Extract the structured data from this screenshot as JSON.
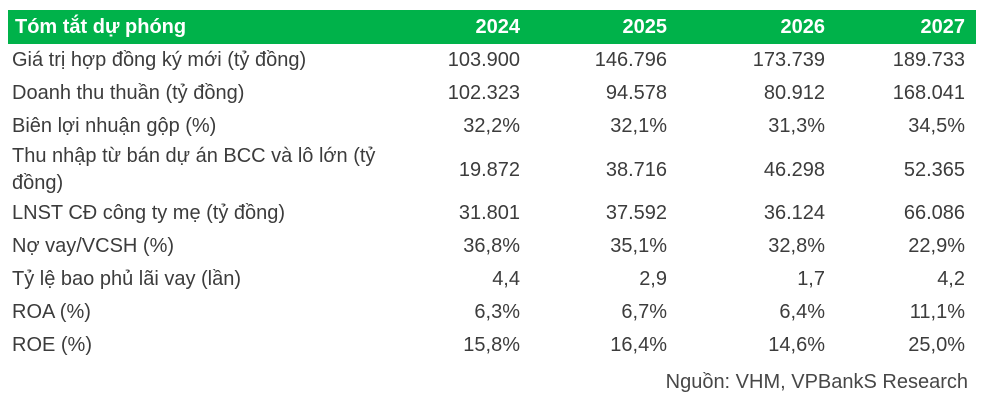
{
  "colors": {
    "header_bg": "#00B24A",
    "header_text": "#FFFFFF",
    "body_text": "#3C3C3C"
  },
  "table": {
    "header": {
      "title": "Tóm tắt dự phóng",
      "years": [
        "2024",
        "2025",
        "2026",
        "2027"
      ]
    },
    "rows": [
      {
        "label": "Giá trị hợp đồng ký mới (tỷ đồng)",
        "values": [
          "103.900",
          "146.796",
          "173.739",
          "189.733"
        ]
      },
      {
        "label": "Doanh thu thuần (tỷ đồng)",
        "values": [
          "102.323",
          "94.578",
          "80.912",
          "168.041"
        ]
      },
      {
        "label": "Biên lợi nhuận gộp (%)",
        "values": [
          "32,2%",
          "32,1%",
          "31,3%",
          "34,5%"
        ]
      },
      {
        "label": "Thu nhập từ bán dự án BCC và lô lớn (tỷ đồng)",
        "values": [
          "19.872",
          "38.716",
          "46.298",
          "52.365"
        ]
      },
      {
        "label": "LNST CĐ công ty mẹ (tỷ đồng)",
        "values": [
          "31.801",
          "37.592",
          "36.124",
          "66.086"
        ]
      },
      {
        "label": "Nợ vay/VCSH (%)",
        "values": [
          "36,8%",
          "35,1%",
          "32,8%",
          "22,9%"
        ]
      },
      {
        "label": "Tỷ lệ bao phủ lãi vay (lần)",
        "values": [
          "4,4",
          "2,9",
          "1,7",
          "4,2"
        ]
      },
      {
        "label": "ROA (%)",
        "values": [
          "6,3%",
          "6,7%",
          "6,4%",
          "11,1%"
        ]
      },
      {
        "label": "ROE (%)",
        "values": [
          "15,8%",
          "16,4%",
          "14,6%",
          "25,0%"
        ]
      }
    ],
    "source": "Nguồn: VHM, VPBankS Research"
  }
}
